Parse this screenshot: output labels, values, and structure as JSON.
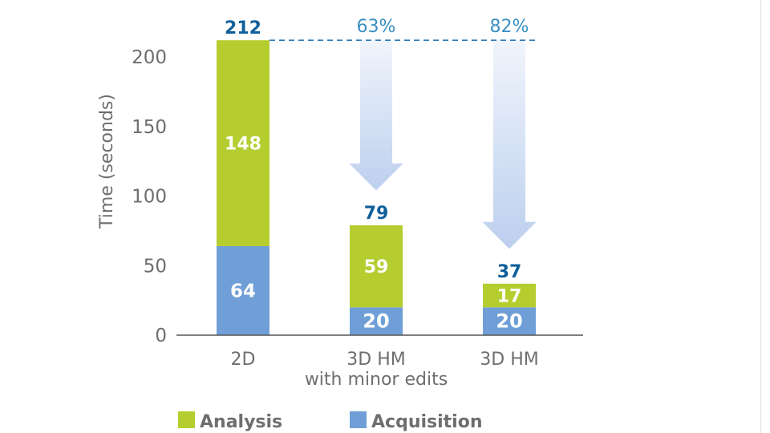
{
  "chart_data": {
    "type": "bar",
    "stacked": true,
    "categories": [
      [
        "2D"
      ],
      [
        "3D HM",
        "with minor edits"
      ],
      [
        "3D HM"
      ]
    ],
    "series": [
      {
        "name": "Acquisition",
        "values": [
          64,
          20,
          20
        ],
        "color": "#6f9fd6"
      },
      {
        "name": "Analysis",
        "values": [
          148,
          59,
          17
        ],
        "color": "#b6cd30"
      }
    ],
    "totals": [
      "212",
      "79",
      "37"
    ],
    "reductions": [
      "",
      "63%",
      "82%"
    ],
    "ylabel": "Time (seconds)",
    "yticks": [
      0,
      50,
      100,
      150,
      200
    ],
    "ylim": [
      0,
      212
    ],
    "legend_position": "bottom",
    "colors": {
      "total_label": "#0f5f9a",
      "reduction_label": "#3a8fc3",
      "reference_line": "#2b7bb9",
      "arrow_top": "#f1f5fc",
      "arrow_bottom": "#bccfee",
      "axis": "#555555",
      "tick_text": "#6e6e6e",
      "segment_label": "#ffffff"
    }
  }
}
